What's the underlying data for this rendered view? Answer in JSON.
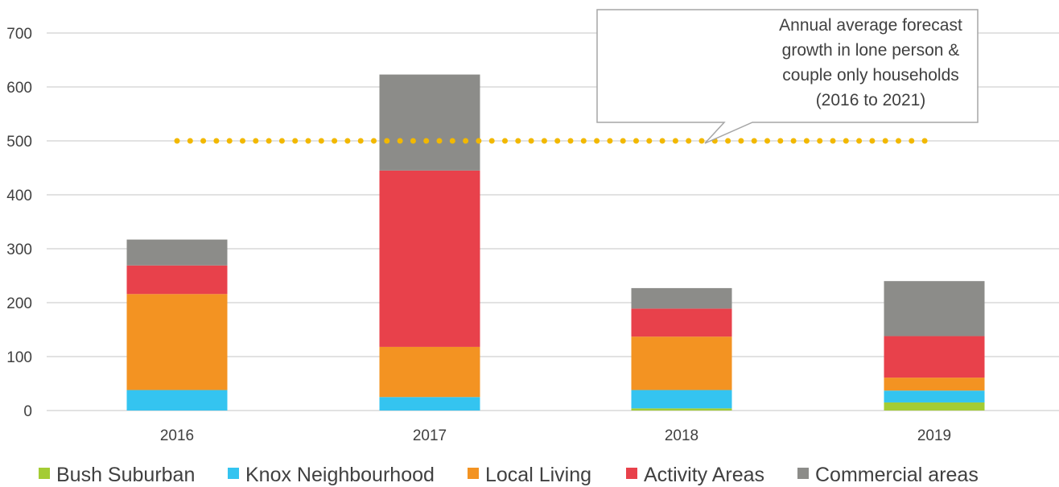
{
  "chart_data": {
    "type": "bar",
    "stacked": true,
    "categories": [
      "2016",
      "2017",
      "2018",
      "2019"
    ],
    "series": [
      {
        "name": "Bush Suburban",
        "color": "#a4cc34",
        "values": [
          0,
          0,
          4,
          15
        ]
      },
      {
        "name": "Knox Neighbourhood",
        "color": "#34c4f0",
        "values": [
          38,
          25,
          34,
          22
        ]
      },
      {
        "name": "Local Living",
        "color": "#f39322",
        "values": [
          178,
          93,
          99,
          24
        ]
      },
      {
        "name": "Activity Areas",
        "color": "#e8414b",
        "values": [
          53,
          327,
          52,
          77
        ]
      },
      {
        "name": "Commercial areas",
        "color": "#8c8c89",
        "values": [
          48,
          178,
          38,
          102
        ]
      }
    ],
    "ylim": [
      0,
      700
    ],
    "yticks": [
      0,
      100,
      200,
      300,
      400,
      500,
      600,
      700
    ],
    "grid": true,
    "legend_position": "bottom",
    "reference_line": {
      "value": 500,
      "color": "#f2b800",
      "style": "dotted",
      "annotation": [
        "Annual average forecast",
        "growth in lone person &",
        "couple only households",
        "(2016 to 2021)"
      ]
    }
  }
}
